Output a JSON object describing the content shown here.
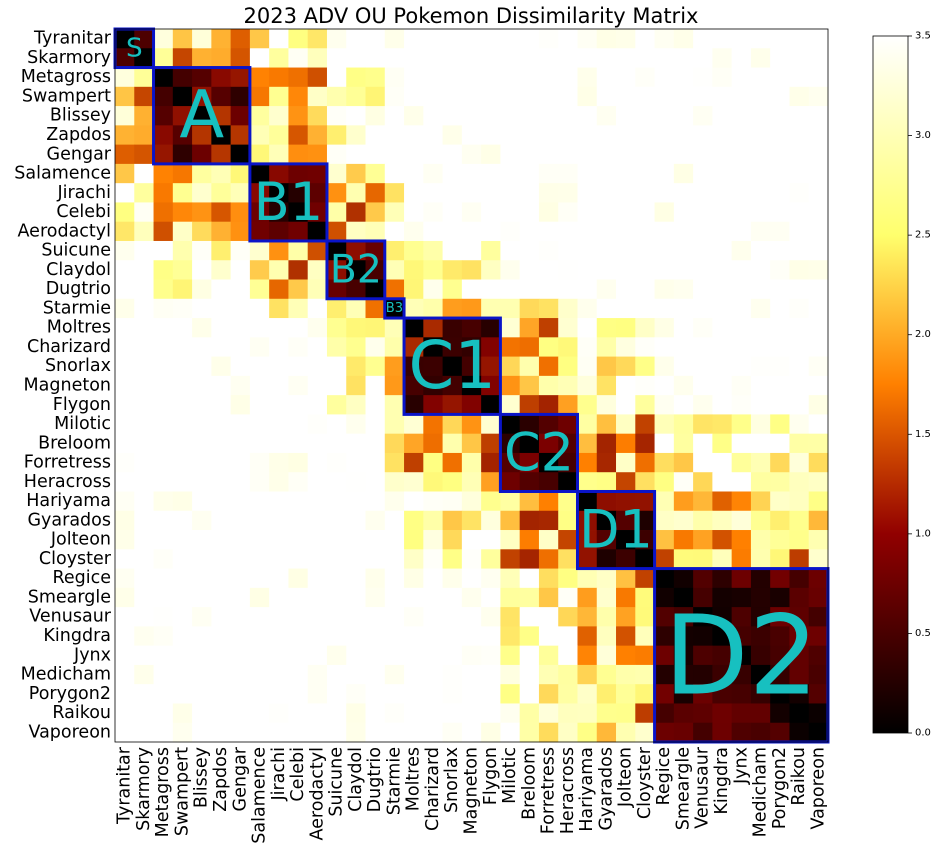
{
  "chart_data": {
    "type": "heatmap",
    "title": "2023 ADV OU Pokemon Dissimilarity Matrix",
    "labels": [
      "Tyranitar",
      "Skarmory",
      "Metagross",
      "Swampert",
      "Blissey",
      "Zapdos",
      "Gengar",
      "Salamence",
      "Jirachi",
      "Celebi",
      "Aerodactyl",
      "Suicune",
      "Claydol",
      "Dugtrio",
      "Starmie",
      "Moltres",
      "Charizard",
      "Snorlax",
      "Magneton",
      "Flygon",
      "Milotic",
      "Breloom",
      "Forretress",
      "Heracross",
      "Hariyama",
      "Gyarados",
      "Jolteon",
      "Cloyster",
      "Regice",
      "Smeargle",
      "Venusaur",
      "Kingdra",
      "Jynx",
      "Medicham",
      "Porygon2",
      "Raikou",
      "Vaporeon"
    ],
    "colormap": "afmhot",
    "vmin": 0.0,
    "vmax": 3.5,
    "colorbar_ticks": [
      "0.0",
      "0.5",
      "1.0",
      "1.5",
      "2.0",
      "2.5",
      "3.0",
      "3.5"
    ],
    "values_note": "values above 3.5 render as white",
    "clusters": [
      {
        "name": "S",
        "label": "S",
        "start": 0,
        "end": 1
      },
      {
        "name": "A",
        "label": "A",
        "start": 2,
        "end": 6
      },
      {
        "name": "B1",
        "label": "B1",
        "start": 7,
        "end": 10
      },
      {
        "name": "B2",
        "label": "B2",
        "start": 11,
        "end": 13
      },
      {
        "name": "B3",
        "label": "B3",
        "start": 14,
        "end": 14
      },
      {
        "name": "C1",
        "label": "C1",
        "start": 15,
        "end": 19
      },
      {
        "name": "C2",
        "label": "C2",
        "start": 20,
        "end": 23
      },
      {
        "name": "D1",
        "label": "D1",
        "start": 24,
        "end": 27
      },
      {
        "name": "D2",
        "label": "D2",
        "start": 28,
        "end": 36
      }
    ],
    "cluster_border_color": "#0a14c8",
    "cluster_label_color": "#17c0c0"
  }
}
